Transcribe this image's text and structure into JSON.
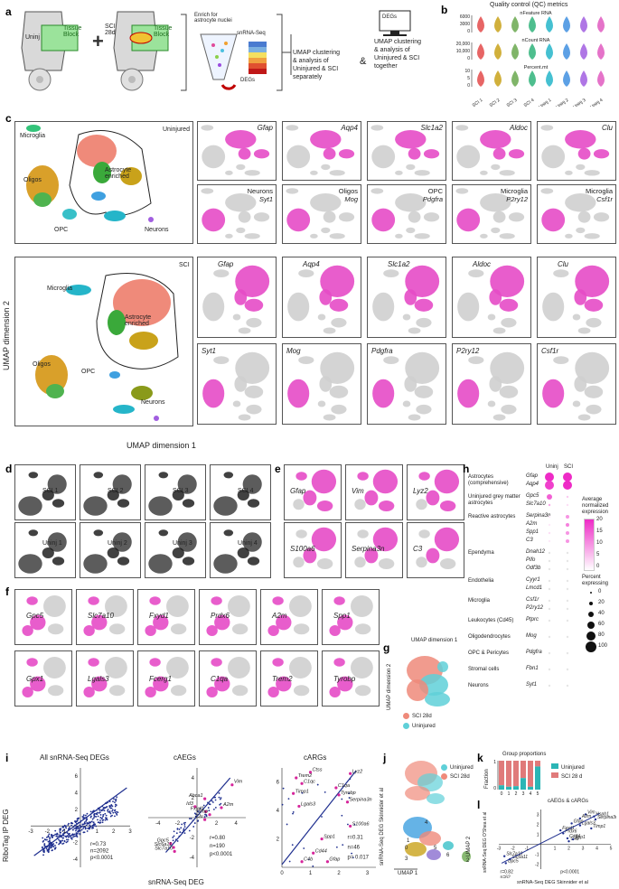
{
  "panel_letters": [
    "a",
    "b",
    "c",
    "d",
    "e",
    "f",
    "g",
    "h",
    "i",
    "j",
    "k",
    "l"
  ],
  "panel_a": {
    "uninj_label": "Uninj",
    "sci_label_1": "SCI",
    "sci_label_2": "28d",
    "tissue_block_1": "Tissue",
    "tissue_block_2": "Block",
    "enrich_1": "Enrich for",
    "enrich_2": "astrocyte nuclei",
    "snrna": "snRNA-Seq",
    "degs": "DEGs",
    "degs_box": "DEGs",
    "analysis_sep_1": "UMAP clustering",
    "analysis_sep_2": "& analysis of",
    "analysis_sep_3": "Uninjured & SCI",
    "analysis_sep_4": "separately",
    "amp": "&",
    "analysis_tog_1": "UMAP clustering",
    "analysis_tog_2": "& analysis of",
    "analysis_tog_3": "Uninjured & SCI",
    "analysis_tog_4": "together"
  },
  "panel_b": {
    "title": "Quality control (QC) metrics",
    "rows": [
      {
        "name": "nFeature RNA",
        "ticks": [
          "6000",
          "3000",
          "0"
        ]
      },
      {
        "name": "nCount RNA",
        "ticks": [
          "20,000",
          "10,000",
          "0"
        ]
      },
      {
        "name": "Percent.mt",
        "ticks": [
          "10",
          "5",
          "0"
        ]
      }
    ],
    "samples": [
      "SCI 1",
      "SCI 2",
      "SCI 3",
      "SCI 4",
      "Uninj 1",
      "Uninj 2",
      "Uninj 3",
      "Uninj 4"
    ],
    "colors": [
      "#e34a4a",
      "#c9a21a",
      "#6aa84f",
      "#2fb37a",
      "#25b5c9",
      "#3f8fe0",
      "#a15ee0",
      "#e05ac0"
    ]
  },
  "panel_c": {
    "uninjured_title": "Uninjured",
    "sci_title": "SCI",
    "microglia": "Microglia",
    "astro_1": "Astrocyte",
    "astro_2": "enriched",
    "oligos": "Oligos",
    "opc": "OPC",
    "neurons": "Neurons",
    "y_axis": "UMAP dimension 2",
    "x_axis": "UMAP dimension 1",
    "uninj_genes_row1": [
      "Gfap",
      "Aqp4",
      "Slc1a2",
      "Aldoc",
      "Clu"
    ],
    "uninj_genes_row2": [
      {
        "cell": "Neurons",
        "gene": "Syt1"
      },
      {
        "cell": "Oligos",
        "gene": "Mog"
      },
      {
        "cell": "OPC",
        "gene": "Pdgfra"
      },
      {
        "cell": "Microglia",
        "gene": "P2ry12"
      },
      {
        "cell": "Microglia",
        "gene": "Csf1r"
      }
    ],
    "sci_genes_row1": [
      "Gfap",
      "Aqp4",
      "Slc1a2",
      "Aldoc",
      "Clu"
    ],
    "sci_genes_row2": [
      "Syt1",
      "Mog",
      "Pdgfra",
      "P2ry12",
      "Csf1r"
    ]
  },
  "panel_d": {
    "row1": [
      "SCI 1",
      "SCI 2",
      "SCI 3",
      "SCI 4"
    ],
    "row2": [
      "Uninj 1",
      "Uninj 2",
      "Uninj 3",
      "Uninj 4"
    ]
  },
  "panel_e": {
    "row1": [
      "Gfap",
      "Vim",
      "Lyz2"
    ],
    "row2": [
      "S100a6",
      "Serpina3n",
      "C3"
    ]
  },
  "panel_f": {
    "row1": [
      "Gpc5",
      "Slc7a10",
      "Fxyd1",
      "Prdx6",
      "A2m",
      "Spp1"
    ],
    "row2": [
      "Gpx1",
      "Lgals3",
      "Fcerg1",
      "C1qa",
      "Trem2",
      "Tyrobp"
    ]
  },
  "panel_g": {
    "x_axis": "UMAP dimension 1",
    "y_axis": "UMAP dimension 2",
    "legend": [
      {
        "label": "SCI 28d",
        "color": "#ef8a7a"
      },
      {
        "label": "Uninjured",
        "color": "#5fd0d8"
      }
    ]
  },
  "panel_h": {
    "col_headers": [
      "Uninj",
      "SCI"
    ],
    "groups": [
      {
        "label": "Astrocytes (comprehensive)",
        "genes": [
          "Gfap",
          "Aqp4"
        ]
      },
      {
        "label": "Uninjured grey matter astrocytes",
        "genes": [
          "Gpc5",
          "Slc7a10"
        ]
      },
      {
        "label": "Reactive astrocytes",
        "genes": [
          "Serpina3n",
          "A2m",
          "Spp1",
          "C3"
        ]
      },
      {
        "label": "Ependyma",
        "genes": [
          "Dnah12",
          "Pifo",
          "Odf3b"
        ]
      },
      {
        "label": "Endothelia",
        "genes": [
          "Cyyr1",
          "Lmcd1"
        ]
      },
      {
        "label": "Microglia",
        "genes": [
          "Csf1r",
          "P2ry12"
        ]
      },
      {
        "label": "Leukocytes (Cd45)",
        "genes": [
          "Ptprc"
        ]
      },
      {
        "label": "Oligodendrocytes",
        "genes": [
          "Mog"
        ]
      },
      {
        "label": "OPC & Pericytes",
        "genes": [
          "Pdgfra"
        ]
      },
      {
        "label": "Stromal cells",
        "genes": [
          "Fbn1"
        ]
      },
      {
        "label": "Neurons",
        "genes": [
          "Syt1"
        ]
      }
    ],
    "dots": [
      [
        20,
        20
      ],
      [
        18,
        20
      ],
      [
        15,
        5
      ],
      [
        8,
        3
      ],
      [
        2,
        10
      ],
      [
        2,
        12
      ],
      [
        3,
        10
      ],
      [
        2,
        10
      ],
      [
        0,
        0
      ],
      [
        0,
        0
      ],
      [
        0,
        0
      ],
      [
        0,
        0
      ],
      [
        0,
        0
      ],
      [
        0,
        0
      ],
      [
        0,
        0
      ],
      [
        0,
        0
      ],
      [
        0,
        0
      ],
      [
        0,
        0
      ],
      [
        0,
        0
      ],
      [
        0,
        0
      ]
    ],
    "size": [
      [
        100,
        100
      ],
      [
        100,
        100
      ],
      [
        60,
        20
      ],
      [
        20,
        10
      ],
      [
        10,
        40
      ],
      [
        10,
        40
      ],
      [
        20,
        40
      ],
      [
        10,
        40
      ],
      [
        0,
        0
      ],
      [
        0,
        0
      ],
      [
        0,
        0
      ],
      [
        0,
        0
      ],
      [
        0,
        0
      ],
      [
        0,
        0
      ],
      [
        0,
        0
      ],
      [
        0,
        0
      ],
      [
        0,
        0
      ],
      [
        0,
        0
      ],
      [
        0,
        0
      ],
      [
        0,
        0
      ]
    ],
    "legend_color_title_1": "Average",
    "legend_color_title_2": "normalized",
    "legend_color_title_3": "expression",
    "color_ticks": [
      "20",
      "15",
      "10",
      "5",
      "0"
    ],
    "legend_size_title_1": "Percent",
    "legend_size_title_2": "expressing",
    "size_ticks": [
      "0",
      "20",
      "40",
      "60",
      "80",
      "100"
    ]
  },
  "panel_i": {
    "titles": [
      "All snRNA-Seq DEGs",
      "cAEGs",
      "cARGs"
    ],
    "y_axis": "RiboTag IP DEG",
    "x_axis": "snRNA-Seq DEG",
    "stats": [
      {
        "r": "r=0.73",
        "n": "n=2092",
        "p": "p<0.0001"
      },
      {
        "r": "r=0.80",
        "n": "n=190",
        "p": "p<0.0001"
      },
      {
        "r": "r=0.31",
        "n": "n=46",
        "p": "p= 0.017"
      }
    ],
    "a_xticks": [
      "-3",
      "-2",
      "-1",
      "",
      "1",
      "2",
      "3"
    ],
    "a_yticks": [
      "6",
      "4",
      "2",
      "-2",
      "-4"
    ],
    "b_xticks": [
      "-4",
      "-2",
      "",
      "2",
      "4"
    ],
    "b_yticks": [
      "4",
      "2",
      "-2",
      "-4"
    ],
    "c_xticks": [
      "0",
      "1",
      "2",
      "3"
    ],
    "c_yticks": [
      "6",
      "4",
      "2"
    ],
    "aeg_labels": [
      "Vim",
      "Abca1",
      "Id3",
      "Aldoc6",
      "Fxyd1",
      "Gfap",
      "Clu",
      "A2m",
      "Gpc5",
      "Slc6a11",
      "Slc7a10"
    ],
    "arg_labels": [
      "Ctss",
      "Trem2",
      "C1qc",
      "C1qb",
      "Lyz2",
      "Timp1",
      "C1qa",
      "Tyrobp",
      "Lgals3",
      "Serpina3n",
      "Hspb1",
      "S100a6",
      "Spp1",
      "Cd44",
      "C4b",
      "Gfap"
    ]
  },
  "panel_j": {
    "y_axis": "snRNA-Seq DEG Skinnider et al",
    "x_axis": "UMAP 1",
    "y2_axis": "UMAP 2",
    "legend": [
      {
        "label": "Uninjured",
        "color": "#5fd0d8"
      },
      {
        "label": "SCI 28d",
        "color": "#ef8a7a"
      }
    ],
    "clusters": [
      "0",
      "1",
      "2",
      "3",
      "4",
      "5",
      "6"
    ]
  },
  "panel_k": {
    "title": "Group proportions",
    "y_label": "Fraction",
    "x_ticks": [
      "0",
      "1",
      "2",
      "3",
      "4",
      "5"
    ],
    "y_ticks": [
      "1",
      "0"
    ],
    "legend": [
      {
        "label": "Uninjured",
        "color": "#2bb5b5"
      },
      {
        "label": "SCI 28 d",
        "color": "#e07a7a"
      }
    ]
  },
  "panel_l": {
    "title": "cAEGs & cARGs",
    "y_axis": "snRNA-Seq DEG O'Shea et al",
    "x_axis": "snRNA-Seq DEG Skinnider et al",
    "r": "r=0.82",
    "n": "n=62",
    "p": "p<0.0001",
    "x_ticks": [
      "-3",
      "-2",
      "-1",
      "",
      "1",
      "2",
      "3",
      "4",
      "5"
    ],
    "y_ticks": [
      "3",
      "2",
      "1",
      "-1",
      "-2"
    ],
    "labels": [
      "Vim",
      "Hspb1",
      "A2m",
      "Serpina3n",
      "Gfap",
      "Lgals3",
      "Timp1",
      "Fxyd1",
      "Prdx6",
      "Cd44",
      "Slc7a10",
      "Slc6a11",
      "Gpc5",
      "C4b",
      "Spp1"
    ]
  },
  "chart_data": [
    {
      "type": "scatter",
      "title": "All snRNA-Seq DEGs",
      "xlabel": "snRNA-Seq DEG",
      "ylabel": "RiboTag IP DEG",
      "xlim": [
        -3,
        3
      ],
      "ylim": [
        -4,
        6
      ],
      "annotation": [
        "r=0.73",
        "n=2092",
        "p<0.0001"
      ]
    },
    {
      "type": "scatter",
      "title": "cAEGs",
      "xlim": [
        -4,
        4
      ],
      "ylim": [
        -4,
        4
      ],
      "points": [
        {
          "label": "Vim",
          "x": 3.6,
          "y": 3.3
        },
        {
          "label": "Abca1",
          "x": 0.8,
          "y": 1.9
        },
        {
          "label": "A2m",
          "x": 2.5,
          "y": 1.0
        },
        {
          "label": "Id3",
          "x": -0.2,
          "y": 1.1
        },
        {
          "label": "Fxyd1",
          "x": 0.9,
          "y": 0.6
        },
        {
          "label": "Gfap",
          "x": 1.3,
          "y": 0.3
        },
        {
          "label": "Clu",
          "x": 0.8,
          "y": -0.2
        },
        {
          "label": "Gpc5",
          "x": -2.7,
          "y": -2.6
        },
        {
          "label": "Slc6a11",
          "x": -2.4,
          "y": -3.0
        },
        {
          "label": "Slc7a10",
          "x": -2.3,
          "y": -3.4
        }
      ],
      "annotation": [
        "r=0.80",
        "n=190",
        "p<0.0001"
      ]
    },
    {
      "type": "scatter",
      "title": "cARGs",
      "xlim": [
        0,
        3
      ],
      "ylim": [
        0,
        7
      ],
      "points": [
        {
          "label": "Ctss",
          "x": 1.0,
          "y": 6.7
        },
        {
          "label": "Trem2",
          "x": 0.5,
          "y": 6.3
        },
        {
          "label": "C1qc",
          "x": 0.7,
          "y": 5.9
        },
        {
          "label": "Lyz2",
          "x": 2.4,
          "y": 6.6
        },
        {
          "label": "Timp1",
          "x": 0.4,
          "y": 5.2
        },
        {
          "label": "C1qa",
          "x": 1.9,
          "y": 5.6
        },
        {
          "label": "Tyrobp",
          "x": 2.0,
          "y": 5.1
        },
        {
          "label": "Lgals3",
          "x": 0.6,
          "y": 4.3
        },
        {
          "label": "Serpina3n",
          "x": 2.3,
          "y": 4.6
        },
        {
          "label": "S100a6",
          "x": 2.4,
          "y": 2.9
        },
        {
          "label": "Spp1",
          "x": 1.4,
          "y": 2.0
        },
        {
          "label": "Cd44",
          "x": 1.1,
          "y": 1.0
        },
        {
          "label": "C4b",
          "x": 0.7,
          "y": 0.4
        },
        {
          "label": "Gfap",
          "x": 1.6,
          "y": 0.4
        }
      ],
      "annotation": [
        "r=0.31",
        "n=46",
        "p= 0.017"
      ]
    },
    {
      "type": "bar",
      "title": "Group proportions",
      "categories": [
        "0",
        "1",
        "2",
        "3",
        "4",
        "5"
      ],
      "series": [
        {
          "name": "SCI 28 d",
          "values": [
            0.85,
            0.9,
            0.88,
            0.6,
            0.9,
            0.2
          ]
        },
        {
          "name": "Uninjured",
          "values": [
            0.15,
            0.1,
            0.12,
            0.4,
            0.1,
            0.8
          ]
        }
      ],
      "ylim": [
        0,
        1
      ]
    },
    {
      "type": "scatter",
      "title": "cAEGs & cARGs",
      "xlim": [
        -3,
        5
      ],
      "ylim": [
        -2,
        3
      ],
      "annotation": [
        "r=0.82",
        "n=62",
        "p<0.0001"
      ]
    }
  ]
}
